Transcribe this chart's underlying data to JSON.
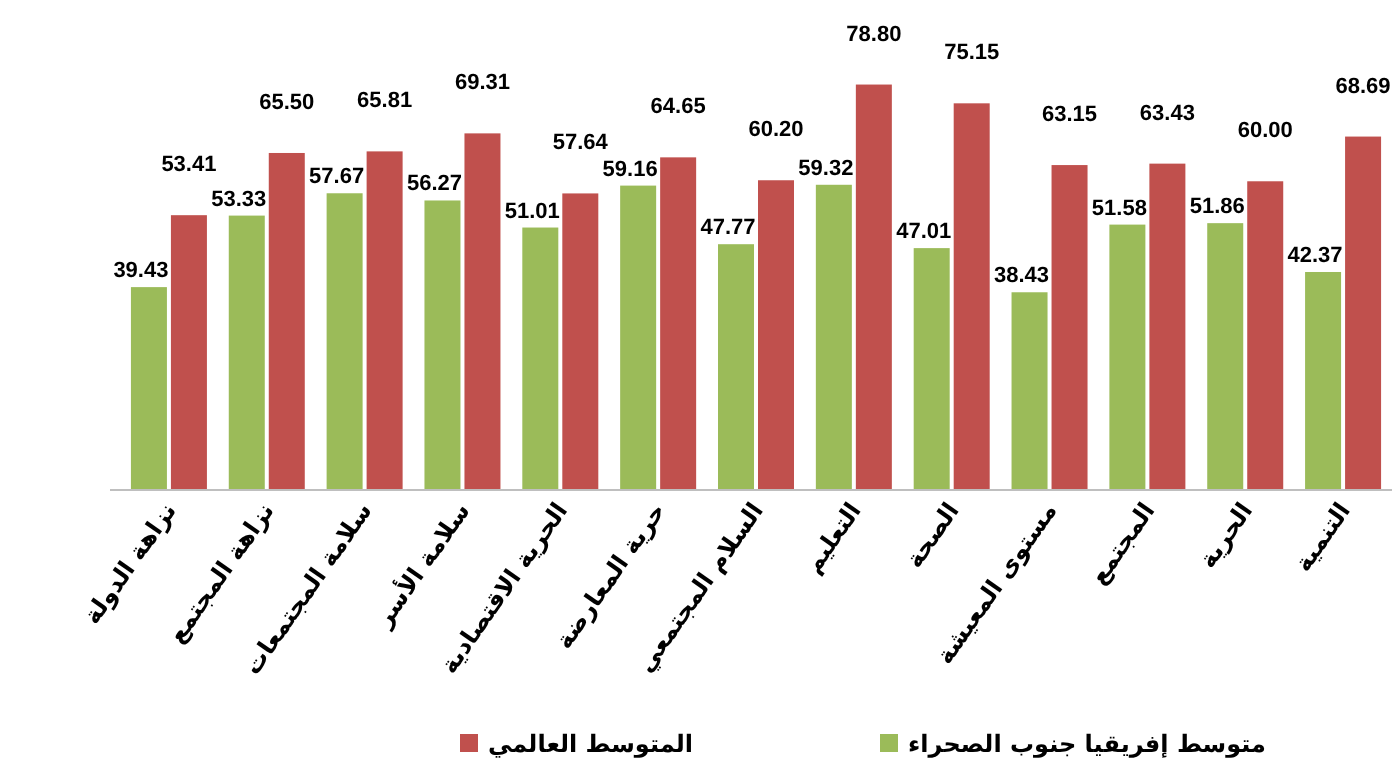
{
  "chart_data": {
    "type": "bar",
    "categories": [
      "نزاهة الدولة",
      "نزاهة المجتمع",
      "سلامة المجتمعات",
      "سلامة الأسر",
      "الحرية الاقتصادية",
      "حرية المعارضة",
      "السلام المجتمعي",
      "التعليم",
      "الصحة",
      "مستوى المعيشة",
      "المجتمع",
      "الحرية",
      "التنمية"
    ],
    "series": [
      {
        "name": "متوسط إفريقيا جنوب الصحراء",
        "color": "#9bbb59",
        "values": [
          39.43,
          53.33,
          57.67,
          56.27,
          51.01,
          59.16,
          47.77,
          59.32,
          47.01,
          38.43,
          51.58,
          51.86,
          42.37
        ],
        "value_labels": [
          "39.43",
          "53.33",
          "57.67",
          "56.27",
          "51.01",
          "59.16",
          "47.77",
          "59.32",
          "47.01",
          "38.43",
          "51.58",
          "51.86",
          "42.37"
        ]
      },
      {
        "name": "المتوسط العالمي",
        "color": "#c0504d",
        "values": [
          53.41,
          65.5,
          65.81,
          69.31,
          57.64,
          64.65,
          60.2,
          78.8,
          75.15,
          63.15,
          63.43,
          60.0,
          68.69
        ],
        "value_labels": [
          "53.41",
          "65.50",
          "65.81",
          "69.31",
          "57.64",
          "64.65",
          "60.20",
          "78.80",
          "75.15",
          "63.15",
          "63.43",
          "60.00",
          "68.69"
        ]
      }
    ],
    "legend": "bottom"
  }
}
